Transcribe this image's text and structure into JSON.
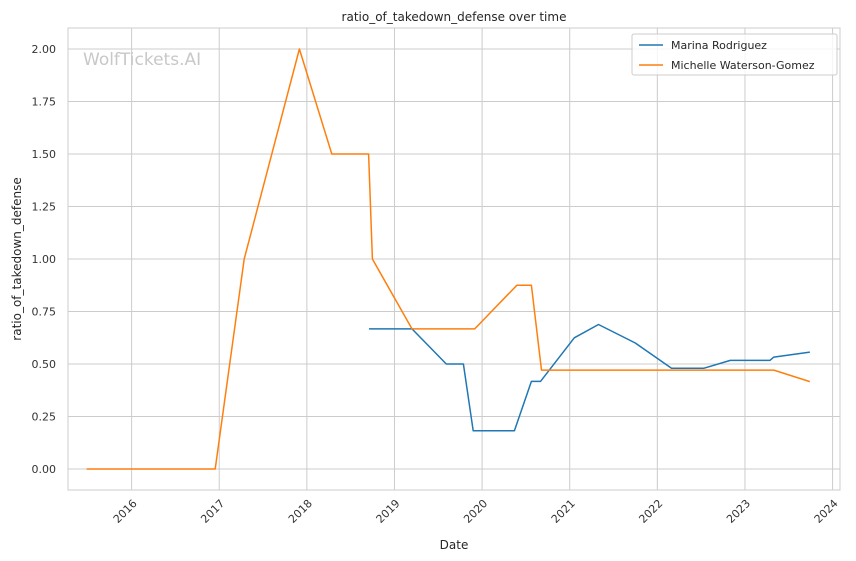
{
  "chart_data": {
    "type": "line",
    "title": "ratio_of_takedown_defense over time",
    "xlabel": "Date",
    "ylabel": "ratio_of_takedown_defense",
    "watermark": "WolfTickets.AI",
    "x_ticks": [
      "2016",
      "2017",
      "2018",
      "2019",
      "2020",
      "2021",
      "2022",
      "2023",
      "2024"
    ],
    "y_ticks": [
      "0.00",
      "0.25",
      "0.50",
      "0.75",
      "1.00",
      "1.25",
      "1.50",
      "1.75",
      "2.00"
    ],
    "xlim": [
      "2015-04-11",
      "2024-02-01"
    ],
    "ylim": [
      -0.1,
      2.1
    ],
    "grid": true,
    "legend_position": "top-right",
    "series": [
      {
        "name": "Marina Rodriguez",
        "color": "#1f77b4",
        "points": [
          [
            "2018-09-20",
            0.667
          ],
          [
            "2019-03-15",
            0.667
          ],
          [
            "2019-08-05",
            0.5
          ],
          [
            "2019-10-15",
            0.5
          ],
          [
            "2019-11-25",
            0.182
          ],
          [
            "2020-05-15",
            0.182
          ],
          [
            "2020-07-25",
            0.417
          ],
          [
            "2020-09-01",
            0.417
          ],
          [
            "2021-01-20",
            0.625
          ],
          [
            "2021-05-01",
            0.688
          ],
          [
            "2021-10-01",
            0.6
          ],
          [
            "2022-03-01",
            0.48
          ],
          [
            "2022-07-15",
            0.48
          ],
          [
            "2022-11-01",
            0.517
          ],
          [
            "2023-04-15",
            0.517
          ],
          [
            "2023-05-01",
            0.533
          ],
          [
            "2023-09-25",
            0.556
          ]
        ]
      },
      {
        "name": "Michelle Waterson-Gomez",
        "color": "#ff7f0e",
        "points": [
          [
            "2015-07-01",
            0.0
          ],
          [
            "2016-12-15",
            0.0
          ],
          [
            "2017-04-15",
            1.0
          ],
          [
            "2017-12-01",
            2.0
          ],
          [
            "2018-04-15",
            1.5
          ],
          [
            "2018-09-15",
            1.5
          ],
          [
            "2018-10-01",
            1.0
          ],
          [
            "2019-03-15",
            0.667
          ],
          [
            "2019-12-01",
            0.667
          ],
          [
            "2020-05-25",
            0.875
          ],
          [
            "2020-07-25",
            0.875
          ],
          [
            "2020-09-05",
            0.471
          ],
          [
            "2023-05-01",
            0.471
          ],
          [
            "2023-09-25",
            0.417
          ]
        ]
      }
    ]
  }
}
